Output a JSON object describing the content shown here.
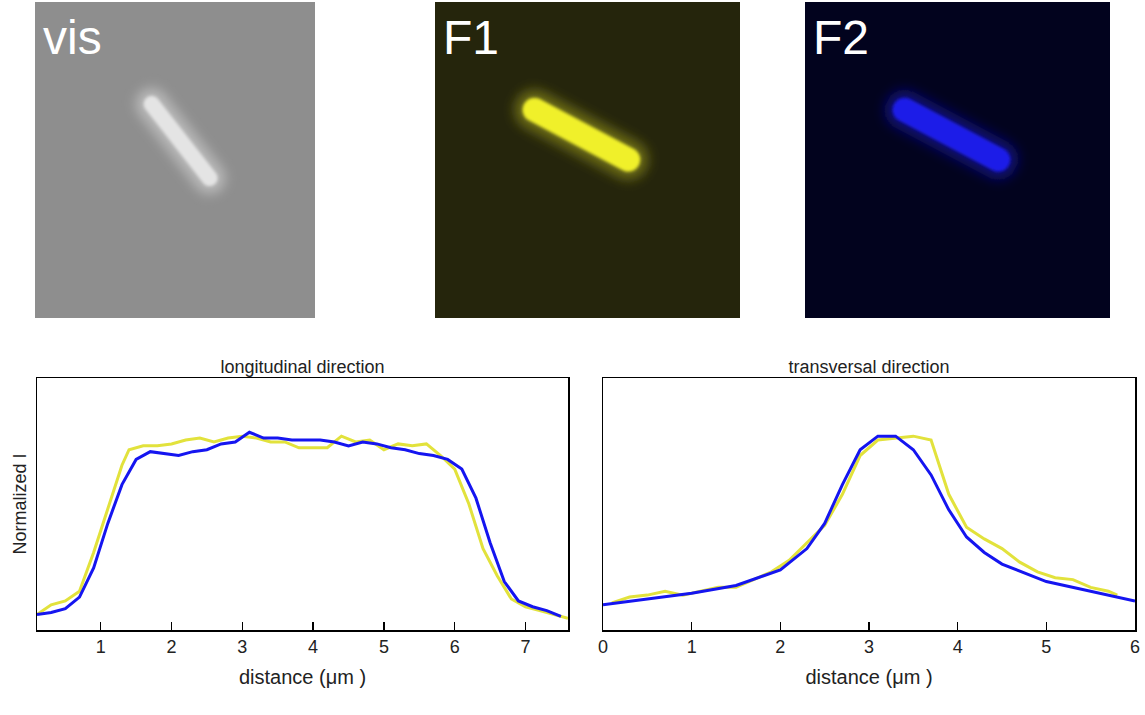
{
  "images": [
    {
      "label": "vis"
    },
    {
      "label": "F1"
    },
    {
      "label": "F2"
    }
  ],
  "chart_data": [
    {
      "type": "line",
      "title": "longitudinal direction",
      "x_label": "distance (μm )",
      "y_label": "Normalized I",
      "xlim": [
        0.1,
        7.6
      ],
      "xticks": [
        1,
        2,
        3,
        4,
        5,
        6,
        7
      ],
      "ylim": [
        0,
        1.3
      ],
      "tick_labels": "x",
      "series": [
        {
          "color": "#e2e23c",
          "x": [
            0.1,
            0.3,
            0.5,
            0.7,
            0.9,
            1.1,
            1.3,
            1.4,
            1.6,
            1.8,
            2.0,
            2.2,
            2.4,
            2.6,
            2.8,
            3.0,
            3.2,
            3.4,
            3.6,
            3.8,
            4.0,
            4.2,
            4.4,
            4.6,
            4.8,
            5.0,
            5.2,
            5.4,
            5.6,
            5.8,
            6.0,
            6.2,
            6.4,
            6.6,
            6.8,
            7.0,
            7.2,
            7.4,
            7.6
          ],
          "values": [
            0.08,
            0.13,
            0.15,
            0.2,
            0.4,
            0.62,
            0.85,
            0.93,
            0.95,
            0.95,
            0.96,
            0.98,
            0.99,
            0.97,
            0.99,
            1.0,
            0.99,
            0.97,
            0.97,
            0.94,
            0.94,
            0.94,
            1.0,
            0.97,
            0.98,
            0.93,
            0.96,
            0.95,
            0.96,
            0.9,
            0.83,
            0.65,
            0.42,
            0.28,
            0.16,
            0.12,
            0.1,
            0.08,
            0.06
          ]
        },
        {
          "color": "#1515f0",
          "x": [
            0.1,
            0.3,
            0.5,
            0.7,
            0.9,
            1.1,
            1.3,
            1.5,
            1.7,
            1.9,
            2.1,
            2.3,
            2.5,
            2.7,
            2.9,
            3.1,
            3.3,
            3.5,
            3.7,
            3.9,
            4.1,
            4.3,
            4.5,
            4.7,
            4.9,
            5.1,
            5.3,
            5.5,
            5.7,
            5.9,
            6.1,
            6.3,
            6.5,
            6.7,
            6.9,
            7.1,
            7.3,
            7.5
          ],
          "values": [
            0.08,
            0.09,
            0.11,
            0.17,
            0.32,
            0.55,
            0.75,
            0.88,
            0.92,
            0.91,
            0.9,
            0.92,
            0.93,
            0.96,
            0.97,
            1.02,
            0.99,
            0.99,
            0.98,
            0.98,
            0.98,
            0.97,
            0.95,
            0.97,
            0.96,
            0.94,
            0.93,
            0.91,
            0.9,
            0.88,
            0.83,
            0.68,
            0.45,
            0.25,
            0.15,
            0.12,
            0.1,
            0.07
          ]
        }
      ]
    },
    {
      "type": "line",
      "title": "transversal direction",
      "x_label": "distance (μm )",
      "xlim": [
        0,
        6
      ],
      "xticks": [
        0,
        1,
        2,
        3,
        4,
        5,
        6
      ],
      "ylim": [
        0,
        1.3
      ],
      "tick_labels": "x",
      "series": [
        {
          "color": "#e2e23c",
          "x": [
            0.1,
            0.3,
            0.5,
            0.7,
            0.9,
            1.1,
            1.3,
            1.5,
            1.7,
            1.9,
            2.1,
            2.3,
            2.5,
            2.7,
            2.9,
            3.1,
            3.3,
            3.5,
            3.7,
            3.9,
            4.1,
            4.3,
            4.5,
            4.7,
            4.9,
            5.1,
            5.3,
            5.5,
            5.7,
            5.8
          ],
          "values": [
            0.14,
            0.17,
            0.18,
            0.2,
            0.18,
            0.2,
            0.22,
            0.22,
            0.26,
            0.3,
            0.36,
            0.45,
            0.54,
            0.7,
            0.9,
            0.98,
            0.99,
            1.0,
            0.98,
            0.7,
            0.53,
            0.47,
            0.42,
            0.35,
            0.3,
            0.27,
            0.26,
            0.22,
            0.2,
            0.18
          ]
        },
        {
          "color": "#1515f0",
          "x": [
            0,
            0.5,
            1,
            1.5,
            2,
            2.3,
            2.5,
            2.7,
            2.9,
            3.1,
            3.3,
            3.5,
            3.7,
            3.9,
            4.1,
            4.3,
            4.5,
            5,
            5.5,
            6
          ],
          "values": [
            0.13,
            0.16,
            0.19,
            0.23,
            0.31,
            0.42,
            0.55,
            0.75,
            0.93,
            1.0,
            1.0,
            0.93,
            0.8,
            0.62,
            0.48,
            0.4,
            0.34,
            0.25,
            0.2,
            0.15
          ]
        }
      ]
    }
  ]
}
